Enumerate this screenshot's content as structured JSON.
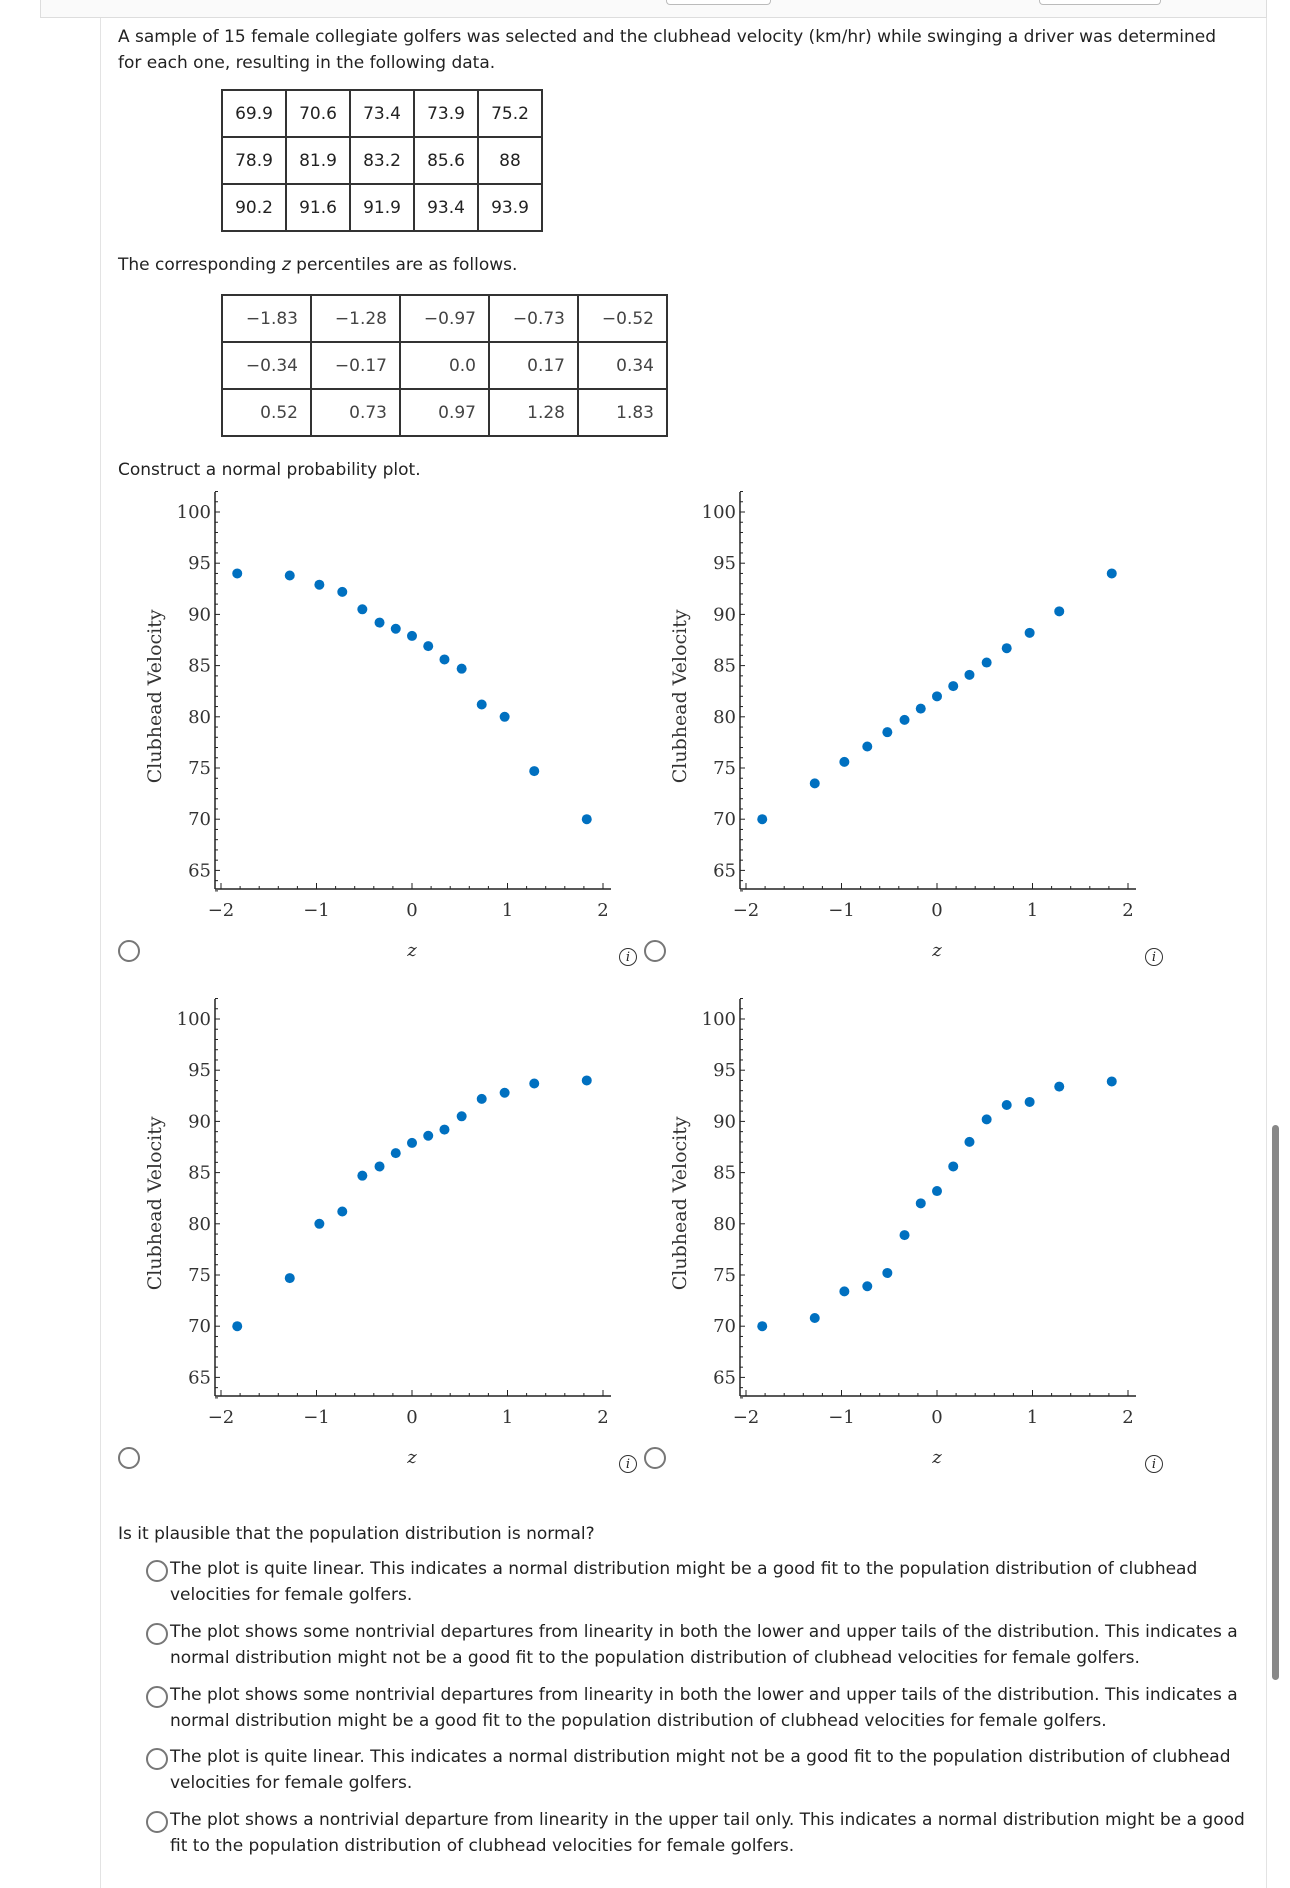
{
  "intro": "A sample of 15 female collegiate golfers was selected and the clubhead velocity (km/hr) while swinging a driver was determined for each one, resulting in the following data.",
  "velocity_table": [
    [
      "69.9",
      "70.6",
      "73.4",
      "73.9",
      "75.2"
    ],
    [
      "78.9",
      "81.9",
      "83.2",
      "85.6",
      "88"
    ],
    [
      "90.2",
      "91.6",
      "91.9",
      "93.4",
      "93.9"
    ]
  ],
  "z_intro": {
    "before": "The corresponding ",
    "var": "z",
    "after": " percentiles are as follows."
  },
  "z_table": [
    [
      "−1.83",
      "−1.28",
      "−0.97",
      "−0.73",
      "−0.52"
    ],
    [
      "−0.34",
      "−0.17",
      "0.0",
      "0.17",
      "0.34"
    ],
    [
      "0.52",
      "0.73",
      "0.97",
      "1.28",
      "1.83"
    ]
  ],
  "construct": "Construct a normal probability plot.",
  "info_icon_glyph": "i",
  "chart_data": [
    {
      "type": "scatter",
      "xlabel": "z",
      "ylabel": "Clubhead Velocity",
      "xlim": [
        -2.1,
        2.1
      ],
      "ylim": [
        63,
        102
      ],
      "xticks": [
        "−2",
        "−1",
        "0",
        "1",
        "2"
      ],
      "yticks": [
        "65",
        "70",
        "75",
        "80",
        "85",
        "90",
        "95",
        "100"
      ],
      "color": "#0070c0",
      "x": [
        -1.83,
        -1.28,
        -0.97,
        -0.73,
        -0.52,
        -0.34,
        -0.17,
        0,
        0.17,
        0.34,
        0.52,
        0.73,
        0.97,
        1.28,
        1.83
      ],
      "y": [
        94,
        93.8,
        92.9,
        92.2,
        90.5,
        89.2,
        88.6,
        87.9,
        86.9,
        85.6,
        84.7,
        81.2,
        80,
        74.7,
        70
      ]
    },
    {
      "type": "scatter",
      "xlabel": "z",
      "ylabel": "Clubhead Velocity",
      "xlim": [
        -2.1,
        2.1
      ],
      "ylim": [
        63,
        102
      ],
      "xticks": [
        "−2",
        "−1",
        "0",
        "1",
        "2"
      ],
      "yticks": [
        "65",
        "70",
        "75",
        "80",
        "85",
        "90",
        "95",
        "100"
      ],
      "color": "#0070c0",
      "x": [
        -1.83,
        -1.28,
        -0.97,
        -0.73,
        -0.52,
        -0.34,
        -0.17,
        0,
        0.17,
        0.34,
        0.52,
        0.73,
        0.97,
        1.28,
        1.83
      ],
      "y": [
        70,
        73.5,
        75.6,
        77.1,
        78.5,
        79.7,
        80.8,
        82,
        83,
        84.1,
        85.3,
        86.7,
        88.2,
        90.3,
        94
      ]
    },
    {
      "type": "scatter",
      "xlabel": "z",
      "ylabel": "Clubhead Velocity",
      "xlim": [
        -2.1,
        2.1
      ],
      "ylim": [
        63,
        102
      ],
      "xticks": [
        "−2",
        "−1",
        "0",
        "1",
        "2"
      ],
      "yticks": [
        "65",
        "70",
        "75",
        "80",
        "85",
        "90",
        "95",
        "100"
      ],
      "color": "#0070c0",
      "x": [
        -1.83,
        -1.28,
        -0.97,
        -0.73,
        -0.52,
        -0.34,
        -0.17,
        0,
        0.17,
        0.34,
        0.52,
        0.73,
        0.97,
        1.28,
        1.83
      ],
      "y": [
        70,
        74.7,
        80,
        81.2,
        84.7,
        85.6,
        86.9,
        87.9,
        88.6,
        89.2,
        90.5,
        92.2,
        92.8,
        93.7,
        94
      ]
    },
    {
      "type": "scatter",
      "xlabel": "z",
      "ylabel": "Clubhead Velocity",
      "xlim": [
        -2.1,
        2.1
      ],
      "ylim": [
        63,
        102
      ],
      "xticks": [
        "−2",
        "−1",
        "0",
        "1",
        "2"
      ],
      "yticks": [
        "65",
        "70",
        "75",
        "80",
        "85",
        "90",
        "95",
        "100"
      ],
      "color": "#0070c0",
      "x": [
        -1.83,
        -1.28,
        -0.97,
        -0.73,
        -0.52,
        -0.34,
        -0.17,
        0,
        0.17,
        0.34,
        0.52,
        0.73,
        0.97,
        1.28,
        1.83
      ],
      "y": [
        70,
        70.8,
        73.4,
        73.9,
        75.2,
        78.9,
        82,
        83.2,
        85.6,
        88,
        90.2,
        91.6,
        91.9,
        93.4,
        93.9
      ]
    }
  ],
  "question": "Is it plausible that the population distribution is normal?",
  "options": [
    "The plot is quite linear. This indicates a normal distribution might be a good fit to the population distribution of clubhead velocities for female golfers.",
    "The plot shows some nontrivial departures from linearity in both the lower and upper tails of the distribution. This indicates a normal distribution might not be a good fit to the population distribution of clubhead velocities for female golfers.",
    "The plot shows some nontrivial departures from linearity in both the lower and upper tails of the distribution. This indicates a normal distribution might be a good fit to the population distribution of clubhead velocities for female golfers.",
    "The plot is quite linear. This indicates a normal distribution might not be a good fit to the population distribution of clubhead velocities for female golfers.",
    "The plot shows a nontrivial departure from linearity in the upper tail only. This indicates a normal distribution might be a good fit to the population distribution of clubhead velocities for female golfers."
  ]
}
